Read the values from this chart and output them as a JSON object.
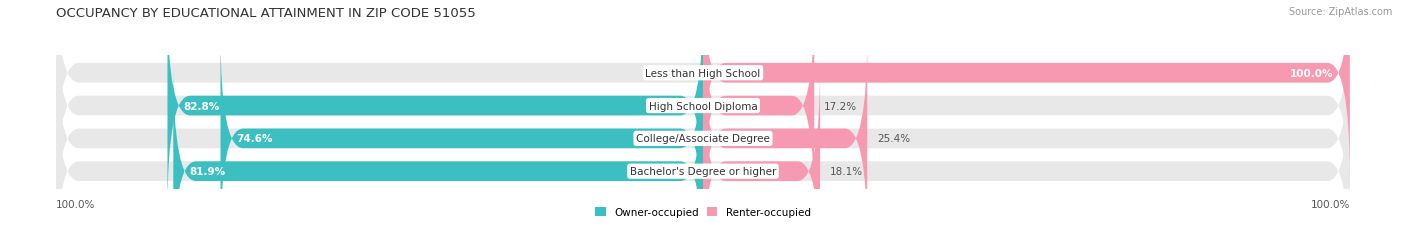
{
  "title": "OCCUPANCY BY EDUCATIONAL ATTAINMENT IN ZIP CODE 51055",
  "source": "Source: ZipAtlas.com",
  "categories": [
    "Less than High School",
    "High School Diploma",
    "College/Associate Degree",
    "Bachelor's Degree or higher"
  ],
  "owner_values": [
    0.0,
    82.8,
    74.6,
    81.9
  ],
  "renter_values": [
    100.0,
    17.2,
    25.4,
    18.1
  ],
  "owner_color": "#3bbfc0",
  "renter_color": "#f799b0",
  "bar_bg_color": "#e8e8e8",
  "owner_label": "Owner-occupied",
  "renter_label": "Renter-occupied",
  "title_fontsize": 9.5,
  "label_fontsize": 7.5,
  "source_fontsize": 7,
  "tick_fontsize": 7.5,
  "bg_color": "#ffffff",
  "axis_label_left": "100.0%",
  "axis_label_right": "100.0%"
}
